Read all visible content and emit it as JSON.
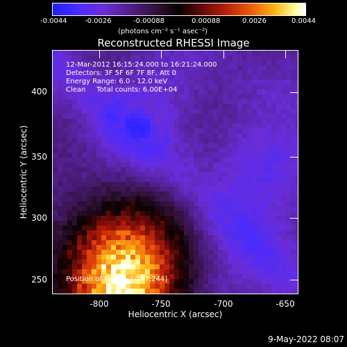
{
  "chart_data": {
    "type": "heatmap",
    "title": "Reconstructed RHESSI Image",
    "xlabel": "Heliocentric X (arcsec)",
    "ylabel": "Heliocentric Y (arcsec)",
    "xlim": [
      -840,
      -642
    ],
    "ylim": [
      240,
      430
    ],
    "x_ticks": [
      "-800",
      "-750",
      "-700",
      "-650"
    ],
    "y_ticks": [
      "400",
      "350",
      "300",
      "250"
    ],
    "colorbar": {
      "ticks": [
        "-0.0044",
        "-0.0026",
        "-0.00088",
        "0.00088",
        "0.0026",
        "0.0044"
      ],
      "range": [
        -0.0044,
        0.0044
      ],
      "unit_label": "(photons cm⁻² s⁻¹ asec⁻²)"
    },
    "annotations": {
      "time_range": "12-Mar-2012 16:15:24.000 to 16:21:24.000",
      "detectors": "Detectors: 3F 5F 6F 7F 8F, Att 0",
      "energy": "Energy Range: 6.0 - 12.0 keV",
      "method": "Clean     Total counts: 6.00E+04",
      "peak": "Position of Peak = [-747,244]"
    }
  },
  "footer": {
    "date": "9-May-2022 08:07"
  }
}
